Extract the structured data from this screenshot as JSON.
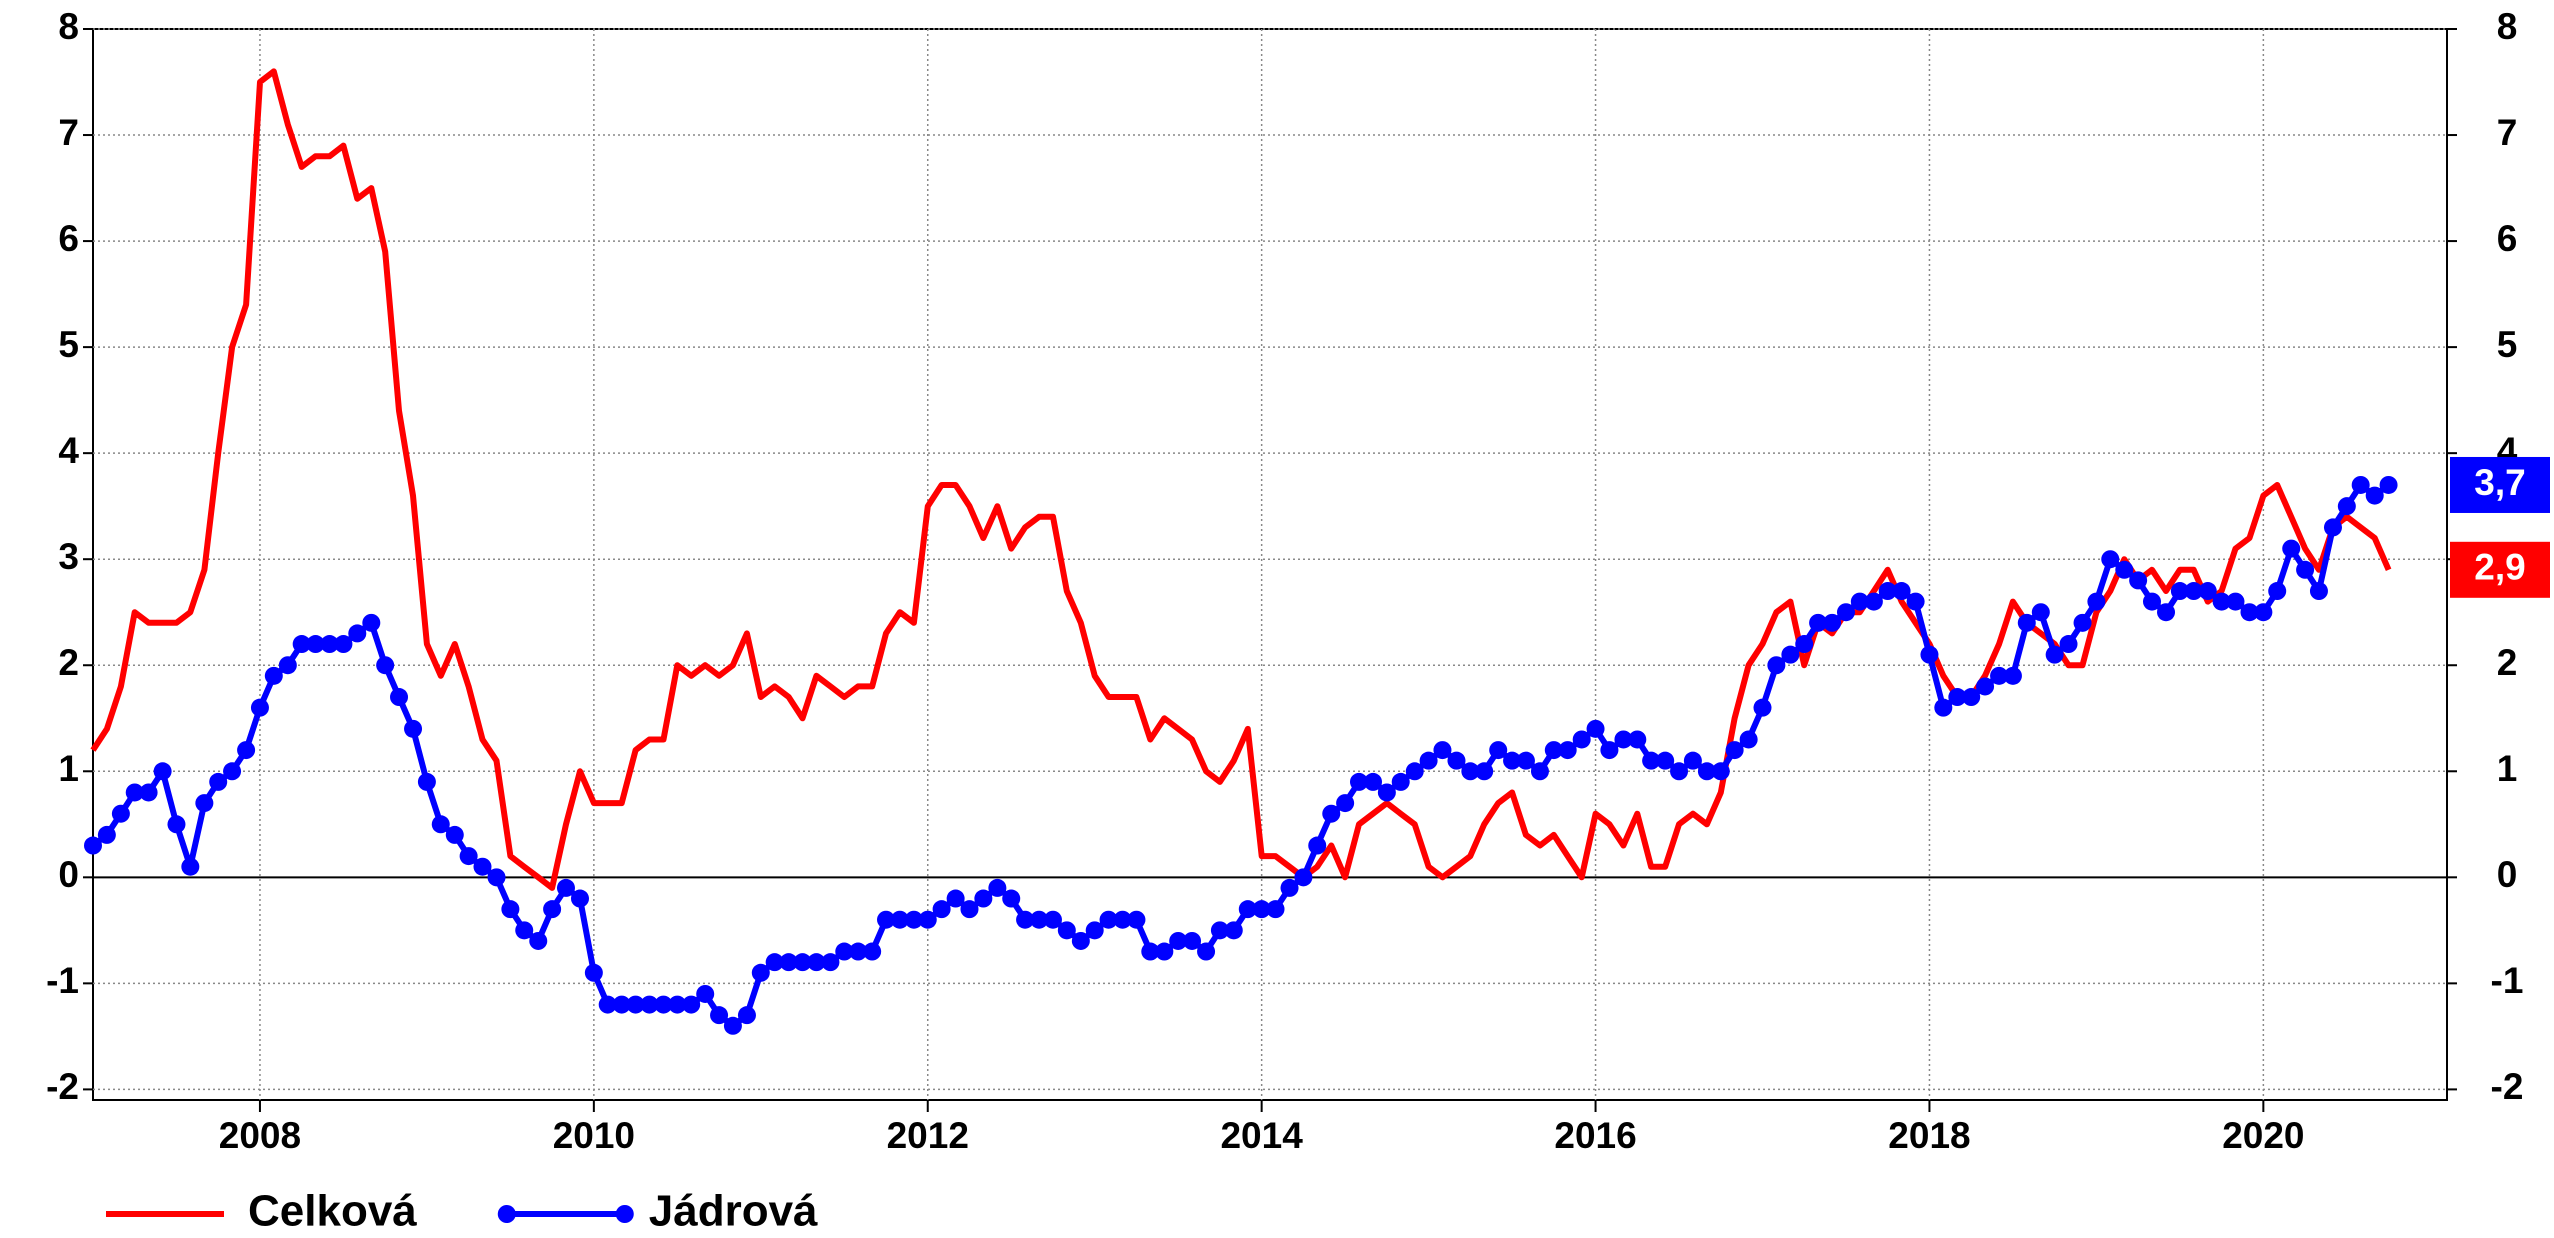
{
  "chart_data": {
    "type": "line",
    "x": [
      2007,
      2007.083,
      2007.167,
      2007.25,
      2007.333,
      2007.417,
      2007.5,
      2007.583,
      2007.667,
      2007.75,
      2007.833,
      2007.917,
      2008,
      2008.083,
      2008.167,
      2008.25,
      2008.333,
      2008.417,
      2008.5,
      2008.583,
      2008.667,
      2008.75,
      2008.833,
      2008.917,
      2009,
      2009.083,
      2009.167,
      2009.25,
      2009.333,
      2009.417,
      2009.5,
      2009.583,
      2009.667,
      2009.75,
      2009.833,
      2009.917,
      2010,
      2010.083,
      2010.167,
      2010.25,
      2010.333,
      2010.417,
      2010.5,
      2010.583,
      2010.667,
      2010.75,
      2010.833,
      2010.917,
      2011,
      2011.083,
      2011.167,
      2011.25,
      2011.333,
      2011.417,
      2011.5,
      2011.583,
      2011.667,
      2011.75,
      2011.833,
      2011.917,
      2012,
      2012.083,
      2012.167,
      2012.25,
      2012.333,
      2012.417,
      2012.5,
      2012.583,
      2012.667,
      2012.75,
      2012.833,
      2012.917,
      2013,
      2013.083,
      2013.167,
      2013.25,
      2013.333,
      2013.417,
      2013.5,
      2013.583,
      2013.667,
      2013.75,
      2013.833,
      2013.917,
      2014,
      2014.083,
      2014.167,
      2014.25,
      2014.333,
      2014.417,
      2014.5,
      2014.583,
      2014.667,
      2014.75,
      2014.833,
      2014.917,
      2015,
      2015.083,
      2015.167,
      2015.25,
      2015.333,
      2015.417,
      2015.5,
      2015.583,
      2015.667,
      2015.75,
      2015.833,
      2015.917,
      2016,
      2016.083,
      2016.167,
      2016.25,
      2016.333,
      2016.417,
      2016.5,
      2016.583,
      2016.667,
      2016.75,
      2016.833,
      2016.917,
      2017,
      2017.083,
      2017.167,
      2017.25,
      2017.333,
      2017.417,
      2017.5,
      2017.583,
      2017.667,
      2017.75,
      2017.833,
      2017.917,
      2018,
      2018.083,
      2018.167,
      2018.25,
      2018.333,
      2018.417,
      2018.5,
      2018.583,
      2018.667,
      2018.75,
      2018.833,
      2018.917,
      2019,
      2019.083,
      2019.167,
      2019.25,
      2019.333,
      2019.417,
      2019.5,
      2019.583,
      2019.667,
      2019.75,
      2019.833,
      2019.917,
      2020,
      2020.083,
      2020.167,
      2020.25,
      2020.333,
      2020.417,
      2020.5,
      2020.583,
      2020.667,
      2020.75
    ],
    "series": [
      {
        "name": "Celková",
        "color": "#ff0000",
        "markers": false,
        "last_value_label": "2,9",
        "values": [
          1.2,
          1.4,
          1.8,
          2.5,
          2.4,
          2.4,
          2.4,
          2.5,
          2.9,
          4.0,
          5.0,
          5.4,
          7.5,
          7.6,
          7.1,
          6.7,
          6.8,
          6.8,
          6.9,
          6.4,
          6.5,
          5.9,
          4.4,
          3.6,
          2.2,
          1.9,
          2.2,
          1.8,
          1.3,
          1.1,
          0.2,
          0.1,
          0.0,
          -0.1,
          0.5,
          1.0,
          0.7,
          0.7,
          0.7,
          1.2,
          1.3,
          1.3,
          2.0,
          1.9,
          2.0,
          1.9,
          2.0,
          2.3,
          1.7,
          1.8,
          1.7,
          1.5,
          1.9,
          1.8,
          1.7,
          1.8,
          1.8,
          2.3,
          2.5,
          2.4,
          3.5,
          3.7,
          3.7,
          3.5,
          3.2,
          3.5,
          3.1,
          3.3,
          3.4,
          3.4,
          2.7,
          2.4,
          1.9,
          1.7,
          1.7,
          1.7,
          1.3,
          1.5,
          1.4,
          1.3,
          1.0,
          0.9,
          1.1,
          1.4,
          0.2,
          0.2,
          0.1,
          0.0,
          0.1,
          0.3,
          0.0,
          0.5,
          0.6,
          0.7,
          0.6,
          0.5,
          0.1,
          0.0,
          0.1,
          0.2,
          0.5,
          0.7,
          0.8,
          0.4,
          0.3,
          0.4,
          0.2,
          0.0,
          0.6,
          0.5,
          0.3,
          0.6,
          0.1,
          0.1,
          0.5,
          0.6,
          0.5,
          0.8,
          1.5,
          2.0,
          2.2,
          2.5,
          2.6,
          2.0,
          2.4,
          2.3,
          2.5,
          2.5,
          2.7,
          2.9,
          2.6,
          2.4,
          2.2,
          1.9,
          1.7,
          1.7,
          1.9,
          2.2,
          2.6,
          2.4,
          2.3,
          2.2,
          2.0,
          2.0,
          2.5,
          2.7,
          3.0,
          2.8,
          2.9,
          2.7,
          2.9,
          2.9,
          2.6,
          2.7,
          3.1,
          3.2,
          3.6,
          3.7,
          3.4,
          3.1,
          2.9,
          3.3,
          3.4,
          3.3,
          3.2,
          2.9
        ]
      },
      {
        "name": "Jádrová",
        "color": "#0000ff",
        "markers": true,
        "last_value_label": "3,7",
        "values": [
          0.3,
          0.4,
          0.6,
          0.8,
          0.8,
          1.0,
          0.5,
          0.1,
          0.7,
          0.9,
          1.0,
          1.2,
          1.6,
          1.9,
          2.0,
          2.2,
          2.2,
          2.2,
          2.2,
          2.3,
          2.4,
          2.0,
          1.7,
          1.4,
          0.9,
          0.5,
          0.4,
          0.2,
          0.1,
          0.0,
          -0.3,
          -0.5,
          -0.6,
          -0.3,
          -0.1,
          -0.2,
          -0.9,
          -1.2,
          -1.2,
          -1.2,
          -1.2,
          -1.2,
          -1.2,
          -1.2,
          -1.1,
          -1.3,
          -1.4,
          -1.3,
          -0.9,
          -0.8,
          -0.8,
          -0.8,
          -0.8,
          -0.8,
          -0.7,
          -0.7,
          -0.7,
          -0.4,
          -0.4,
          -0.4,
          -0.4,
          -0.3,
          -0.2,
          -0.3,
          -0.2,
          -0.1,
          -0.2,
          -0.4,
          -0.4,
          -0.4,
          -0.5,
          -0.6,
          -0.5,
          -0.4,
          -0.4,
          -0.4,
          -0.7,
          -0.7,
          -0.6,
          -0.6,
          -0.7,
          -0.5,
          -0.5,
          -0.3,
          -0.3,
          -0.3,
          -0.1,
          0.0,
          0.3,
          0.6,
          0.7,
          0.9,
          0.9,
          0.8,
          0.9,
          1.0,
          1.1,
          1.2,
          1.1,
          1.0,
          1.0,
          1.2,
          1.1,
          1.1,
          1.0,
          1.2,
          1.2,
          1.3,
          1.4,
          1.2,
          1.3,
          1.3,
          1.1,
          1.1,
          1.0,
          1.1,
          1.0,
          1.0,
          1.2,
          1.3,
          1.6,
          2.0,
          2.1,
          2.2,
          2.4,
          2.4,
          2.5,
          2.6,
          2.6,
          2.7,
          2.7,
          2.6,
          2.1,
          1.6,
          1.7,
          1.7,
          1.8,
          1.9,
          1.9,
          2.4,
          2.5,
          2.1,
          2.2,
          2.4,
          2.6,
          3.0,
          2.9,
          2.8,
          2.6,
          2.5,
          2.7,
          2.7,
          2.7,
          2.6,
          2.6,
          2.5,
          2.5,
          2.7,
          3.1,
          2.9,
          2.7,
          3.3,
          3.5,
          3.7,
          3.6,
          3.7
        ]
      }
    ],
    "xlim": [
      2007,
      2021.1
    ],
    "xticks": [
      2008,
      2010,
      2012,
      2014,
      2016,
      2018,
      2020
    ],
    "ylim": [
      -2.1,
      8
    ],
    "yticks": [
      -2,
      -1,
      0,
      1,
      2,
      3,
      4,
      5,
      6,
      7,
      8
    ],
    "y2lim": [
      -2.1,
      8
    ],
    "y2ticks": [
      -2,
      -1,
      0,
      1,
      2,
      3,
      4,
      5,
      6,
      7,
      8
    ],
    "grid": true,
    "legend": "bottom-left"
  }
}
